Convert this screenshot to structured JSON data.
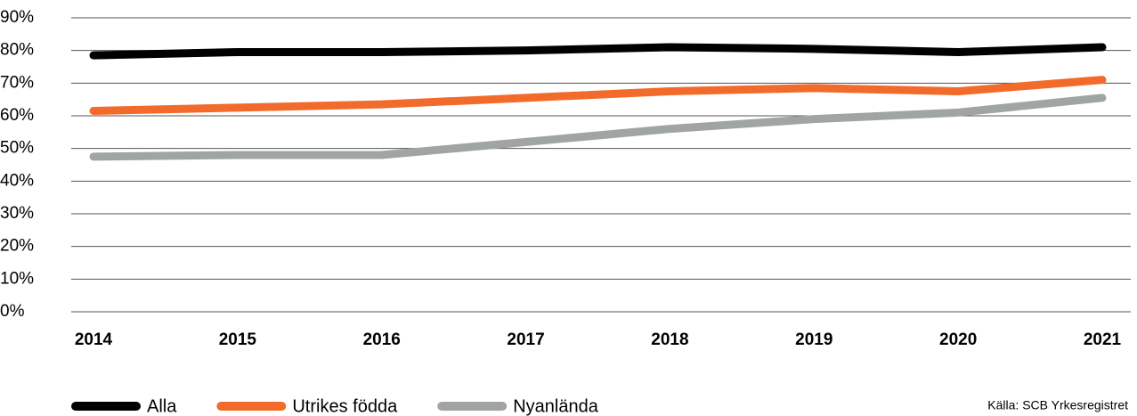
{
  "chart_data": {
    "type": "line",
    "categories": [
      "2014",
      "2015",
      "2016",
      "2017",
      "2018",
      "2019",
      "2020",
      "2021"
    ],
    "series": [
      {
        "name": "Alla",
        "color": "#000000",
        "values": [
          78.5,
          79.5,
          79.5,
          80,
          81,
          80.5,
          79.5,
          81
        ]
      },
      {
        "name": "Utrikes födda",
        "color": "#f26b2a",
        "values": [
          61.5,
          62.5,
          63.5,
          65.5,
          67.5,
          68.5,
          67.5,
          71
        ]
      },
      {
        "name": "Nyanlända",
        "color": "#a0a5a2",
        "values": [
          47.5,
          48,
          48,
          52,
          56,
          59,
          61,
          65.5
        ]
      }
    ],
    "ylim": [
      0,
      90
    ],
    "yticks": [
      {
        "value": 0,
        "label": "0%"
      },
      {
        "value": 10,
        "label": "10%"
      },
      {
        "value": 20,
        "label": "20%"
      },
      {
        "value": 30,
        "label": "30%"
      },
      {
        "value": 40,
        "label": "40%"
      },
      {
        "value": 50,
        "label": "50%"
      },
      {
        "value": 60,
        "label": "60%"
      },
      {
        "value": 70,
        "label": "70%"
      },
      {
        "value": 80,
        "label": "80%"
      },
      {
        "value": 90,
        "label": "90%"
      }
    ],
    "grid": true,
    "legend": "bottom-left",
    "source": "Källa: SCB Yrkesregistret"
  }
}
